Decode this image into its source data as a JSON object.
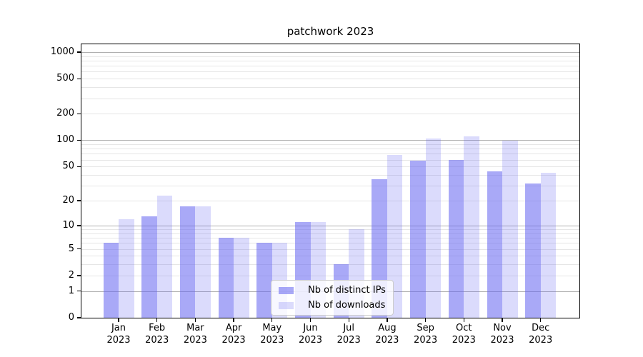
{
  "chart_data": {
    "type": "bar",
    "title": "patchwork 2023",
    "xlabel": "",
    "ylabel": "",
    "yscale": "log1p",
    "ylim": [
      0,
      1224
    ],
    "grid": true,
    "legend_position": "lower-center",
    "categories": [
      "Jan 2023",
      "Feb 2023",
      "Mar 2023",
      "Apr 2023",
      "May 2023",
      "Jun 2023",
      "Jul 2023",
      "Aug 2023",
      "Sep 2023",
      "Oct 2023",
      "Nov 2023",
      "Dec 2023"
    ],
    "series": [
      {
        "name": "Nb of distinct IPs",
        "color": "rgba(101,101,240,0.56)",
        "values": [
          6,
          13,
          17,
          7,
          6,
          11,
          3,
          36,
          58,
          60,
          44,
          32
        ]
      },
      {
        "name": "Nb of downloads",
        "color": "rgba(101,101,240,0.23)",
        "values": [
          12,
          23,
          17,
          7,
          6,
          11,
          9,
          68,
          105,
          110,
          99,
          42
        ]
      }
    ],
    "yticks": [
      {
        "v": 0,
        "label": "0"
      },
      {
        "v": 1,
        "label": "1"
      },
      {
        "v": 2,
        "label": "2"
      },
      {
        "v": 5,
        "label": "5"
      },
      {
        "v": 10,
        "label": "10"
      },
      {
        "v": 20,
        "label": "20"
      },
      {
        "v": 50,
        "label": "50"
      },
      {
        "v": 100,
        "label": "100"
      },
      {
        "v": 200,
        "label": "200"
      },
      {
        "v": 500,
        "label": "500"
      },
      {
        "v": 1000,
        "label": "1000"
      }
    ],
    "major_gridlines": [
      1,
      10,
      100,
      1000
    ],
    "minor_gridlines": [
      2,
      3,
      4,
      5,
      6,
      7,
      8,
      9,
      20,
      30,
      40,
      50,
      60,
      70,
      80,
      90,
      200,
      300,
      400,
      500,
      600,
      700,
      800,
      900
    ],
    "colors": {
      "grid_major": "#b0b0b0",
      "grid_minor": "#e6e6e6",
      "axis": "#000000",
      "background": "#ffffff"
    }
  }
}
